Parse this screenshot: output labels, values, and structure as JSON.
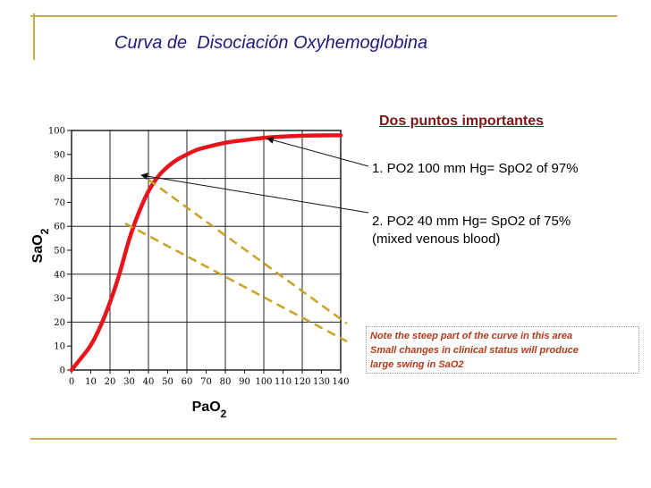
{
  "slide": {
    "title": "Curva de  Disociación Oxyhemoglobina",
    "accent_color": "#c9ac4f",
    "title_color": "#1c1c7a"
  },
  "annotations": {
    "heading": "Dos puntos importantes",
    "point1": "1. PO2 100 mm Hg= SpO2 of 97%",
    "point2_line1": "2. PO2 40 mm Hg= SpO2 of 75%",
    "point2_line2": "(mixed venous blood)",
    "note_line1": "Note the steep part of the curve in this area",
    "note_line2": "Small changes in clinical status will produce",
    "note_line3": "large swing in SaO2",
    "note_color": "#b13a18",
    "heading_color": "#7a1616"
  },
  "chart_data": {
    "type": "line",
    "xlabel": "PaO2",
    "ylabel": "SaO2",
    "xlim": [
      0,
      140
    ],
    "ylim": [
      0,
      100
    ],
    "x_ticks": [
      0,
      10,
      20,
      30,
      40,
      50,
      60,
      70,
      80,
      90,
      100,
      110,
      120,
      130,
      140
    ],
    "y_ticks": [
      0,
      10,
      20,
      30,
      40,
      50,
      60,
      70,
      80,
      90,
      100
    ],
    "grid": true,
    "series": [
      {
        "color": "#e8141c",
        "x": [
          0,
          5,
          10,
          15,
          20,
          25,
          30,
          35,
          40,
          45,
          50,
          55,
          60,
          65,
          70,
          80,
          90,
          100,
          110,
          120,
          130,
          140
        ],
        "y": [
          0,
          5,
          10,
          18,
          28,
          40,
          55,
          66,
          75,
          81,
          85,
          88,
          90,
          92,
          93,
          95,
          96,
          97,
          97.5,
          97.8,
          98,
          98
        ]
      }
    ],
    "highlight_points": [
      {
        "x": 100,
        "y": 97
      },
      {
        "x": 40,
        "y": 75
      }
    ]
  }
}
